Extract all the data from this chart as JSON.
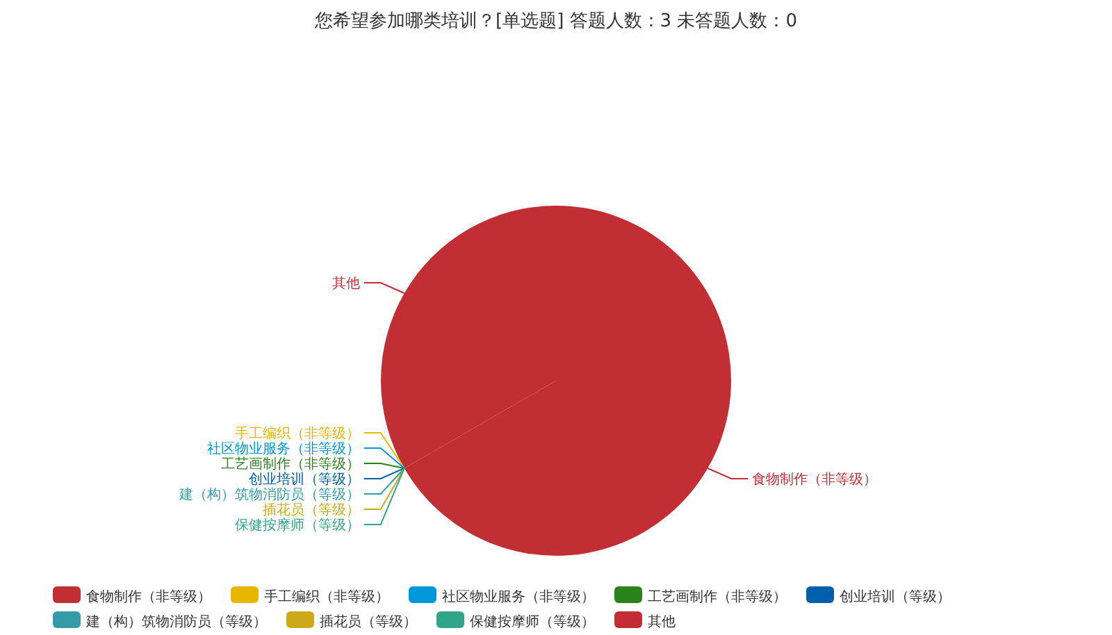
{
  "chart_data": {
    "type": "pie",
    "title": "您希望参加哪类培训？[单选题]  答题人数：3  未答题人数：0",
    "categories": [
      "食物制作（非等级）",
      "手工编织（非等级）",
      "社区物业服务（非等级）",
      "工艺画制作（非等级）",
      "创业培训（等级）",
      "建（构）筑物消防员（等级）",
      "插花员（等级）",
      "保健按摩师（等级）",
      "其他"
    ],
    "values": [
      66.67,
      0,
      0,
      0,
      0,
      0,
      0,
      0,
      33.33
    ],
    "colors": [
      "#c12e34",
      "#e6b600",
      "#0098d9",
      "#2b821d",
      "#005eaa",
      "#339ca8",
      "#cda819",
      "#32a487",
      "#c12e34"
    ],
    "legend": "bottom"
  }
}
